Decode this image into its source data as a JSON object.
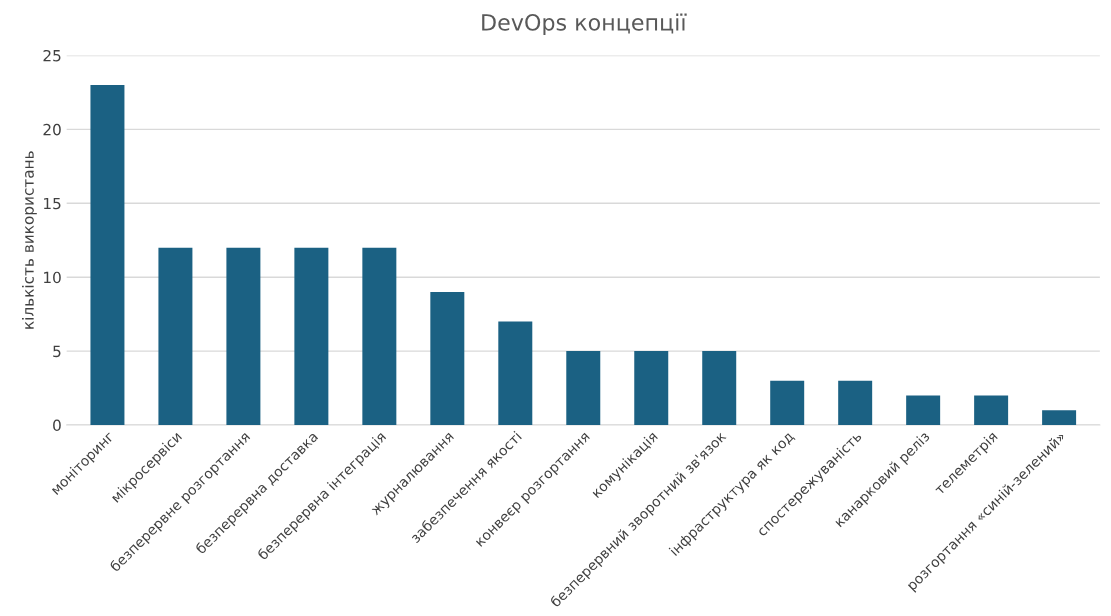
{
  "chart_data": {
    "type": "bar",
    "title": "DevOps концепції",
    "ylabel": "кількість використань",
    "categories": [
      "моніторинг",
      "мікросервіси",
      "безперервне розгортання",
      "безперервна доставка",
      "безперервна інтеграція",
      "журналювання",
      "забезпечення якості",
      "конвеєр розгортання",
      "комунікація",
      "безперервний зворотний зв'язок",
      "інфраструктура як код",
      "спостережуваність",
      "канарковий реліз",
      "телеметрія",
      "розгортання «синій-зелений»"
    ],
    "values": [
      23,
      12,
      12,
      12,
      12,
      9,
      7,
      5,
      5,
      5,
      3,
      3,
      2,
      2,
      1
    ],
    "color": "#1b6183",
    "ylim": [
      0,
      25
    ],
    "yticks": [
      0,
      5,
      10,
      15,
      20,
      25
    ],
    "grid": "y",
    "legend": false
  }
}
